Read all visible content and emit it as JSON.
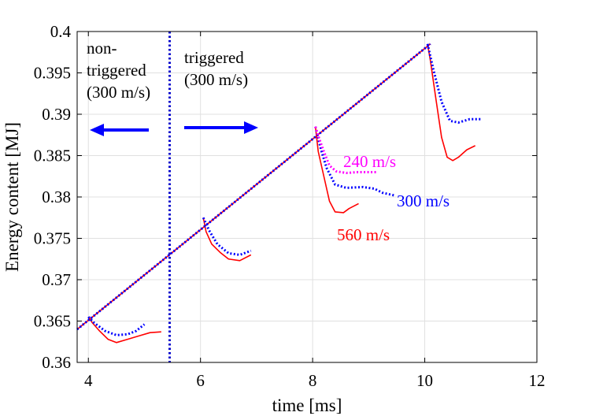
{
  "chart_data": {
    "type": "line",
    "title": "",
    "xlabel": "time [ms]",
    "ylabel": "Energy content [MJ]",
    "xlim": [
      3.8,
      12
    ],
    "ylim": [
      0.36,
      0.4
    ],
    "xticks": [
      "4",
      "6",
      "8",
      "10",
      "12"
    ],
    "yticks": [
      "0.36",
      "0.365",
      "0.37",
      "0.375",
      "0.38",
      "0.385",
      "0.39",
      "0.395",
      "0.4"
    ],
    "grid": true,
    "colors": {
      "red": "#ff0000",
      "blue": "#0000ff",
      "magenta": "#ff00ff",
      "divider": "#0000cc"
    },
    "series": [
      {
        "name": "560 m/s",
        "color": "#ff0000",
        "style": "solid",
        "segments": [
          [
            [
              3.8,
              0.364
            ],
            [
              10.1,
              0.3985
            ]
          ],
          [
            [
              4.0,
              0.3655
            ],
            [
              4.07,
              0.3648
            ],
            [
              4.2,
              0.3638
            ],
            [
              4.35,
              0.3628
            ],
            [
              4.5,
              0.3624
            ],
            [
              4.7,
              0.3628
            ],
            [
              4.9,
              0.3632
            ],
            [
              5.1,
              0.3636
            ],
            [
              5.3,
              0.3637
            ]
          ],
          [
            [
              6.05,
              0.3775
            ],
            [
              6.1,
              0.3758
            ],
            [
              6.2,
              0.3743
            ],
            [
              6.35,
              0.3733
            ],
            [
              6.5,
              0.3725
            ],
            [
              6.7,
              0.3723
            ],
            [
              6.9,
              0.373
            ]
          ],
          [
            [
              8.05,
              0.3885
            ],
            [
              8.1,
              0.3855
            ],
            [
              8.2,
              0.3825
            ],
            [
              8.3,
              0.3795
            ],
            [
              8.4,
              0.3782
            ],
            [
              8.55,
              0.3781
            ],
            [
              8.65,
              0.3786
            ],
            [
              8.82,
              0.3792
            ]
          ],
          [
            [
              10.05,
              0.3985
            ],
            [
              10.1,
              0.3965
            ],
            [
              10.2,
              0.3918
            ],
            [
              10.3,
              0.3872
            ],
            [
              10.4,
              0.3848
            ],
            [
              10.5,
              0.3844
            ],
            [
              10.6,
              0.3848
            ],
            [
              10.75,
              0.3857
            ],
            [
              10.9,
              0.3862
            ]
          ]
        ]
      },
      {
        "name": "300 m/s",
        "color": "#0000ff",
        "style": "dotted",
        "segments": [
          [
            [
              3.8,
              0.364
            ],
            [
              10.1,
              0.3985
            ]
          ],
          [
            [
              4.0,
              0.3655
            ],
            [
              4.1,
              0.3648
            ],
            [
              4.3,
              0.3638
            ],
            [
              4.5,
              0.3633
            ],
            [
              4.7,
              0.3634
            ],
            [
              4.85,
              0.3638
            ],
            [
              5.0,
              0.3646
            ]
          ],
          [
            [
              6.05,
              0.3775
            ],
            [
              6.15,
              0.376
            ],
            [
              6.3,
              0.3743
            ],
            [
              6.5,
              0.3732
            ],
            [
              6.7,
              0.373
            ],
            [
              6.9,
              0.3735
            ]
          ],
          [
            [
              8.05,
              0.3885
            ],
            [
              8.15,
              0.3857
            ],
            [
              8.25,
              0.3835
            ],
            [
              8.4,
              0.3815
            ],
            [
              8.6,
              0.3811
            ],
            [
              8.9,
              0.3812
            ],
            [
              9.1,
              0.381
            ],
            [
              9.25,
              0.3805
            ],
            [
              9.45,
              0.3802
            ]
          ],
          [
            [
              10.05,
              0.3985
            ],
            [
              10.15,
              0.3955
            ],
            [
              10.3,
              0.3915
            ],
            [
              10.45,
              0.3892
            ],
            [
              10.6,
              0.389
            ],
            [
              10.8,
              0.3894
            ],
            [
              11.0,
              0.3894
            ]
          ]
        ]
      },
      {
        "name": "240 m/s",
        "color": "#ff00ff",
        "style": "dotted",
        "segments": [
          [
            [
              8.05,
              0.3885
            ],
            [
              8.12,
              0.387
            ],
            [
              8.2,
              0.3855
            ],
            [
              8.3,
              0.3838
            ],
            [
              8.42,
              0.3831
            ],
            [
              8.6,
              0.3829
            ],
            [
              8.8,
              0.383
            ],
            [
              9.15,
              0.383
            ]
          ]
        ]
      }
    ],
    "annotations": [
      {
        "text": "240 m/s",
        "color": "#ff00ff"
      },
      {
        "text": "300 m/s",
        "color": "#0000ff"
      },
      {
        "text": "560 m/s",
        "color": "#ff0000"
      },
      {
        "text": "non-",
        "color": "#000000"
      },
      {
        "text": "triggered",
        "color": "#000000"
      },
      {
        "text": "(300 m/s)",
        "color": "#000000"
      },
      {
        "text": "triggered",
        "color": "#000000"
      },
      {
        "text": "(300 m/s)",
        "color": "#000000"
      }
    ],
    "divider_x": 5.45
  }
}
